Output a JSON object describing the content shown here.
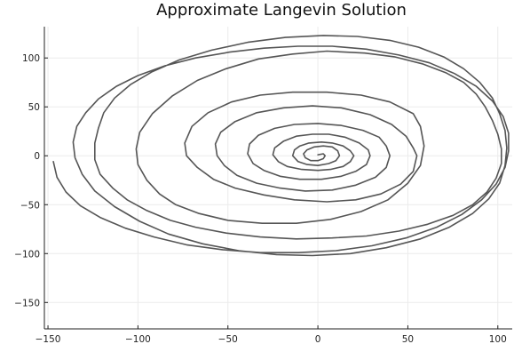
{
  "chart_data": {
    "type": "line",
    "title": "Approximate Langevin Solution",
    "xlabel": "",
    "ylabel": "",
    "xlim": [
      -152,
      108
    ],
    "ylim": [
      -177,
      132
    ],
    "x_ticks": [
      -150,
      -100,
      -50,
      0,
      50,
      100
    ],
    "y_ticks": [
      -150,
      -100,
      -50,
      0,
      50,
      100
    ],
    "x_tick_labels": [
      "−150",
      "−100",
      "−50",
      "0",
      "50",
      "100"
    ],
    "y_tick_labels": [
      "−150",
      "−100",
      "−50",
      "0",
      "50",
      "100"
    ],
    "grid": true,
    "legend": "none",
    "color": "#555555",
    "series": [
      {
        "points": [
          [
            0,
            1
          ],
          [
            3,
            2
          ],
          [
            4,
            0
          ],
          [
            3,
            -3
          ],
          [
            0,
            -5
          ],
          [
            -4,
            -5
          ],
          [
            -7,
            -2
          ],
          [
            -8,
            2
          ],
          [
            -6,
            6
          ],
          [
            -2,
            9
          ],
          [
            3,
            10
          ],
          [
            8,
            9
          ],
          [
            11,
            5
          ],
          [
            12,
            0
          ],
          [
            10,
            -5
          ],
          [
            6,
            -8
          ],
          [
            0,
            -10
          ],
          [
            -6,
            -9
          ],
          [
            -11,
            -6
          ],
          [
            -14,
            0
          ],
          [
            -13,
            6
          ],
          [
            -10,
            10
          ],
          [
            -5,
            13
          ],
          [
            2,
            14
          ],
          [
            8,
            13
          ],
          [
            14,
            10
          ],
          [
            18,
            5
          ],
          [
            20,
            0
          ],
          [
            18,
            -6
          ],
          [
            14,
            -11
          ],
          [
            7,
            -14
          ],
          [
            0,
            -15
          ],
          [
            -9,
            -14
          ],
          [
            -17,
            -11
          ],
          [
            -22,
            -6
          ],
          [
            -25,
            1
          ],
          [
            -24,
            8
          ],
          [
            -19,
            15
          ],
          [
            -12,
            20
          ],
          [
            -3,
            22
          ],
          [
            6,
            22
          ],
          [
            15,
            19
          ],
          [
            23,
            13
          ],
          [
            28,
            6
          ],
          [
            29,
            0
          ],
          [
            27,
            -9
          ],
          [
            21,
            -16
          ],
          [
            13,
            -21
          ],
          [
            2,
            -24
          ],
          [
            -10,
            -24
          ],
          [
            -21,
            -21
          ],
          [
            -30,
            -15
          ],
          [
            -36,
            -8
          ],
          [
            -39,
            2
          ],
          [
            -38,
            12
          ],
          [
            -33,
            21
          ],
          [
            -24,
            28
          ],
          [
            -13,
            32
          ],
          [
            0,
            33
          ],
          [
            13,
            31
          ],
          [
            25,
            26
          ],
          [
            34,
            19
          ],
          [
            38,
            10
          ],
          [
            40,
            0
          ],
          [
            38,
            -12
          ],
          [
            32,
            -22
          ],
          [
            21,
            -30
          ],
          [
            8,
            -35
          ],
          [
            -7,
            -36
          ],
          [
            -21,
            -33
          ],
          [
            -34,
            -28
          ],
          [
            -45,
            -20
          ],
          [
            -52,
            -10
          ],
          [
            -56,
            0
          ],
          [
            -57,
            12
          ],
          [
            -54,
            24
          ],
          [
            -46,
            35
          ],
          [
            -34,
            44
          ],
          [
            -19,
            49
          ],
          [
            -3,
            51
          ],
          [
            13,
            49
          ],
          [
            29,
            42
          ],
          [
            41,
            32
          ],
          [
            49,
            20
          ],
          [
            53,
            8
          ],
          [
            55,
            0
          ],
          [
            53,
            -16
          ],
          [
            46,
            -29
          ],
          [
            35,
            -39
          ],
          [
            21,
            -45
          ],
          [
            5,
            -47
          ],
          [
            -13,
            -45
          ],
          [
            -30,
            -40
          ],
          [
            -46,
            -33
          ],
          [
            -58,
            -24
          ],
          [
            -67,
            -12
          ],
          [
            -73,
            0
          ],
          [
            -74,
            13
          ],
          [
            -70,
            30
          ],
          [
            -61,
            44
          ],
          [
            -48,
            55
          ],
          [
            -32,
            62
          ],
          [
            -14,
            65
          ],
          [
            5,
            65
          ],
          [
            24,
            62
          ],
          [
            40,
            55
          ],
          [
            53,
            43
          ],
          [
            57,
            30
          ],
          [
            59,
            10
          ],
          [
            57,
            -10
          ],
          [
            50,
            -28
          ],
          [
            39,
            -45
          ],
          [
            24,
            -57
          ],
          [
            7,
            -65
          ],
          [
            -12,
            -69
          ],
          [
            -31,
            -69
          ],
          [
            -50,
            -66
          ],
          [
            -66,
            -59
          ],
          [
            -79,
            -50
          ],
          [
            -88,
            -39
          ],
          [
            -95,
            -25
          ],
          [
            -100,
            -9
          ],
          [
            -101,
            7
          ],
          [
            -99,
            24
          ],
          [
            -92,
            43
          ],
          [
            -81,
            61
          ],
          [
            -67,
            77
          ],
          [
            -51,
            89
          ],
          [
            -33,
            99
          ],
          [
            -14,
            104
          ],
          [
            5,
            107
          ],
          [
            26,
            105
          ],
          [
            43,
            101
          ],
          [
            58,
            94
          ],
          [
            71,
            85
          ],
          [
            81,
            75
          ],
          [
            88,
            63
          ],
          [
            93,
            50
          ],
          [
            97,
            36
          ],
          [
            100,
            22
          ],
          [
            102,
            7
          ],
          [
            102,
            -8
          ],
          [
            99,
            -23
          ],
          [
            94,
            -37
          ],
          [
            86,
            -50
          ],
          [
            75,
            -61
          ],
          [
            61,
            -70
          ],
          [
            45,
            -77
          ],
          [
            27,
            -82
          ],
          [
            8,
            -84
          ],
          [
            -12,
            -85
          ],
          [
            -32,
            -83
          ],
          [
            -51,
            -79
          ],
          [
            -68,
            -73
          ],
          [
            -82,
            -66
          ],
          [
            -95,
            -56
          ],
          [
            -106,
            -45
          ],
          [
            -114,
            -33
          ],
          [
            -121,
            -19
          ],
          [
            -124,
            -4
          ],
          [
            -124,
            13
          ],
          [
            -122,
            28
          ],
          [
            -119,
            44
          ],
          [
            -113,
            59
          ],
          [
            -104,
            73
          ],
          [
            -92,
            86
          ],
          [
            -77,
            98
          ],
          [
            -59,
            108
          ],
          [
            -39,
            116
          ],
          [
            -18,
            121
          ],
          [
            3,
            123
          ],
          [
            22,
            122
          ],
          [
            40,
            118
          ],
          [
            56,
            111
          ],
          [
            70,
            101
          ],
          [
            81,
            89
          ],
          [
            90,
            75
          ],
          [
            97,
            59
          ],
          [
            101,
            43
          ],
          [
            104,
            26
          ],
          [
            105,
            8
          ],
          [
            104,
            -10
          ],
          [
            101,
            -28
          ],
          [
            95,
            -44
          ],
          [
            86,
            -59
          ],
          [
            73,
            -73
          ],
          [
            57,
            -85
          ],
          [
            38,
            -94
          ],
          [
            18,
            -100
          ],
          [
            -3,
            -102
          ],
          [
            -23,
            -101
          ],
          [
            -44,
            -97
          ],
          [
            -64,
            -90
          ],
          [
            -83,
            -80
          ],
          [
            -99,
            -67
          ],
          [
            -113,
            -52
          ],
          [
            -124,
            -36
          ],
          [
            -131,
            -19
          ],
          [
            -135,
            -2
          ],
          [
            -136,
            14
          ],
          [
            -134,
            30
          ],
          [
            -129,
            44
          ],
          [
            -122,
            58
          ],
          [
            -112,
            71
          ],
          [
            -100,
            82
          ],
          [
            -85,
            92
          ],
          [
            -68,
            100
          ],
          [
            -49,
            106
          ],
          [
            -30,
            110
          ],
          [
            -11,
            112
          ],
          [
            8,
            112
          ],
          [
            27,
            109
          ],
          [
            45,
            103
          ],
          [
            62,
            95
          ],
          [
            76,
            84
          ],
          [
            88,
            71
          ],
          [
            97,
            56
          ],
          [
            103,
            40
          ],
          [
            106,
            23
          ],
          [
            106,
            5
          ],
          [
            104,
            -12
          ],
          [
            99,
            -29
          ],
          [
            91,
            -45
          ],
          [
            80,
            -60
          ],
          [
            66,
            -73
          ],
          [
            49,
            -84
          ],
          [
            30,
            -92
          ],
          [
            10,
            -97
          ],
          [
            -11,
            -99
          ],
          [
            -32,
            -99
          ],
          [
            -53,
            -96
          ],
          [
            -73,
            -91
          ],
          [
            -91,
            -83
          ],
          [
            -107,
            -74
          ],
          [
            -121,
            -63
          ],
          [
            -132,
            -51
          ],
          [
            -140,
            -37
          ],
          [
            -145,
            -22
          ],
          [
            -147,
            -6
          ]
        ]
      }
    ]
  }
}
